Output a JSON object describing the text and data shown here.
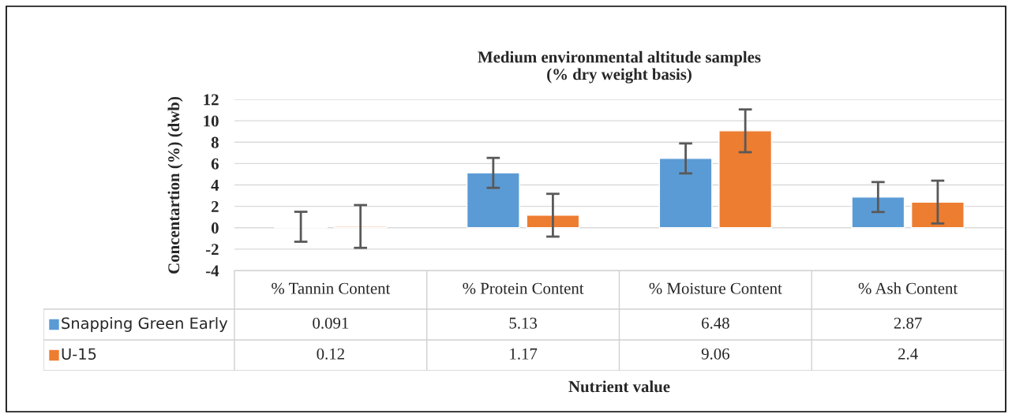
{
  "chart_data": {
    "type": "bar",
    "title": "Medium environmental altitude samples\n(% dry weight basis)",
    "annotations": [
      "Nutrient value"
    ],
    "legend": "bottom left",
    "ylabel": "Concentartion (%) (dwb)",
    "categories": [
      "% Tannin Content",
      "% Protein Content",
      "% Moisture Content",
      "% Ash Content"
    ],
    "series": [
      {
        "name": "Snapping Green Early",
        "color": "#5b9bd5",
        "values": [
          0.091,
          5.13,
          6.48,
          2.87
        ],
        "errors": [
          1.4,
          1.4,
          1.4,
          1.4
        ]
      },
      {
        "name": "U-15",
        "color": "#ed7d31",
        "values": [
          0.12,
          1.17,
          9.06,
          2.4
        ],
        "errors": [
          2.0,
          2.0,
          2.0,
          2.0
        ]
      }
    ],
    "ylim": [
      -4,
      12
    ],
    "yticks": [
      -4,
      -2,
      0,
      2,
      4,
      6,
      8,
      10,
      12
    ],
    "grid": "y",
    "data_labels": true
  }
}
